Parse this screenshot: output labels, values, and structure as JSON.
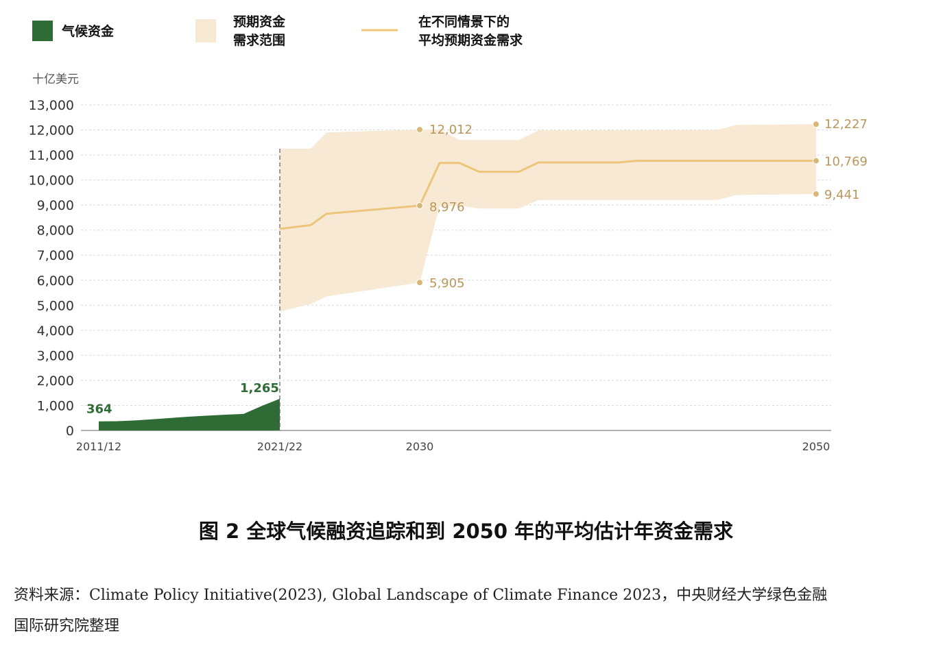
{
  "legend": {
    "climate_finance": "气候资金",
    "range_line1": "预期资金",
    "range_line2": "需求范围",
    "avg_line1": "在不同情景下的",
    "avg_line2": "平均预期资金需求"
  },
  "colors": {
    "green": "#2f6b35",
    "range_fill": "#f7e9d3",
    "avg_line": "#ecc57a",
    "marker": "#d7b879",
    "grid": "#d9d9d9",
    "divider": "#666666"
  },
  "chart_data": {
    "type": "area",
    "ylabel": "十亿美元",
    "ylim": [
      0,
      13000
    ],
    "y_ticks": [
      "0",
      "1,000",
      "2,000",
      "3,000",
      "4,000",
      "5,000",
      "6,000",
      "7,000",
      "8,000",
      "9,000",
      "10,000",
      "11,000",
      "12,000",
      "13,000"
    ],
    "x_ticks": [
      "2011/12",
      "2021/22",
      "2030",
      "2050"
    ],
    "x_range": [
      2011,
      2050
    ],
    "grid": true,
    "legend_position": "top",
    "climate_finance": {
      "name": "气候资金",
      "x": [
        2011,
        2012,
        2013,
        2014,
        2015,
        2016,
        2017,
        2018,
        2019,
        2020,
        2021
      ],
      "values": [
        364,
        370,
        400,
        450,
        500,
        550,
        590,
        630,
        660,
        980,
        1265
      ]
    },
    "range": {
      "name": "预期资金需求范围",
      "x": [
        2021,
        2023,
        2024,
        2030,
        2031,
        2032,
        2033,
        2035,
        2036,
        2045,
        2046,
        2050
      ],
      "upper": [
        11250,
        11250,
        11900,
        12012,
        12012,
        11600,
        11600,
        11600,
        11980,
        12000,
        12200,
        12227
      ],
      "lower": [
        4750,
        5050,
        5350,
        5905,
        8950,
        8980,
        8860,
        8860,
        9200,
        9200,
        9400,
        9441
      ]
    },
    "average": {
      "name": "在不同情景下的平均预期资金需求",
      "x": [
        2021,
        2023,
        2024,
        2030,
        2031,
        2032,
        2033,
        2035,
        2036,
        2040,
        2041,
        2045,
        2050
      ],
      "values": [
        8050,
        8200,
        8650,
        8976,
        10680,
        10680,
        10330,
        10330,
        10700,
        10700,
        10769,
        10769,
        10769
      ]
    },
    "annotations": [
      {
        "text": "364",
        "x": 2011,
        "y": 364,
        "color": "green"
      },
      {
        "text": "1,265",
        "x": 2021,
        "y": 1265,
        "color": "green"
      },
      {
        "text": "12,012",
        "x": 2030,
        "y": 12012,
        "color": "gold"
      },
      {
        "text": "8,976",
        "x": 2030,
        "y": 8976,
        "color": "gold"
      },
      {
        "text": "5,905",
        "x": 2030,
        "y": 5905,
        "color": "gold"
      },
      {
        "text": "12,227",
        "x": 2050,
        "y": 12227,
        "color": "gold"
      },
      {
        "text": "10,769",
        "x": 2050,
        "y": 10769,
        "color": "gold"
      },
      {
        "text": "9,441",
        "x": 2050,
        "y": 9441,
        "color": "gold"
      }
    ],
    "divider_x": 2021
  },
  "caption": "图 2 全球气候融资追踪和到 2050 年的平均估计年资金需求",
  "source_line1": "资料来源：Climate Policy Initiative(2023), Global Landscape of Climate Finance 2023，中央财经大学绿色金融",
  "source_line2": "国际研究院整理"
}
